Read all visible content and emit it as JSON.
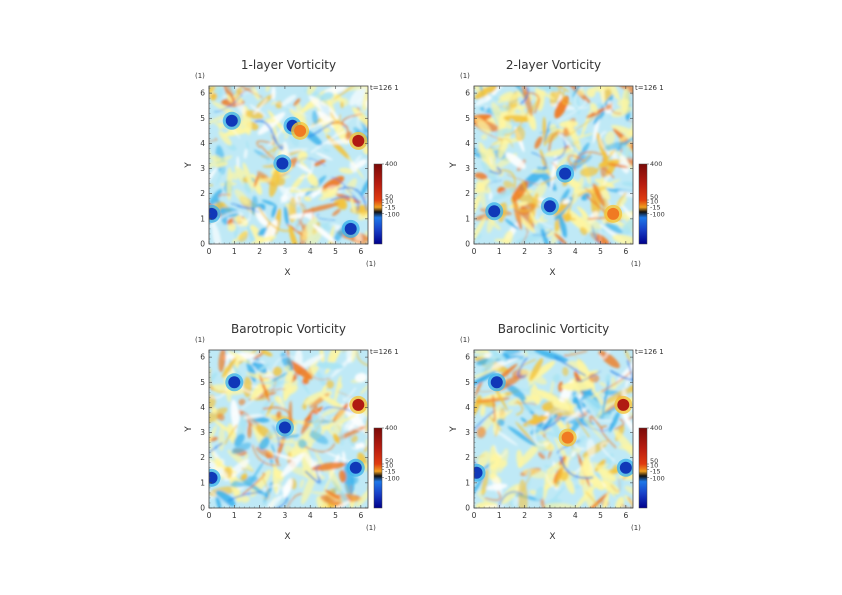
{
  "chart_data": [
    {
      "type": "heatmap",
      "title": "1-layer Vorticity",
      "xlabel": "X",
      "ylabel": "Y",
      "x_unit": "(1)",
      "y_unit": "(1)",
      "time_label": "t=126 1",
      "xlim": [
        0,
        6.2832
      ],
      "ylim": [
        0,
        6.2832
      ],
      "x_ticks": [
        "0",
        "1",
        "2",
        "3",
        "4",
        "5",
        "6"
      ],
      "y_ticks": [
        "0",
        "1",
        "2",
        "3",
        "4",
        "5",
        "6"
      ],
      "colorbar": {
        "labels": [
          "400",
          "50",
          "10",
          "-15",
          "-100"
        ],
        "values": [
          400,
          50,
          10,
          -15,
          -100
        ]
      },
      "features": [
        {
          "kind": "vortex",
          "x": 5.9,
          "y": 4.1,
          "value": 400
        },
        {
          "kind": "vortex",
          "x": 0.1,
          "y": 1.2,
          "value": -100
        },
        {
          "kind": "vortex",
          "x": 0.9,
          "y": 4.9,
          "value": -100
        },
        {
          "kind": "vortex",
          "x": 2.9,
          "y": 3.2,
          "value": -100
        },
        {
          "kind": "vortex",
          "x": 3.3,
          "y": 4.7,
          "value": -100
        },
        {
          "kind": "vortex",
          "x": 5.6,
          "y": 0.6,
          "value": -100
        },
        {
          "kind": "vortex",
          "x": 3.6,
          "y": 4.5,
          "value": 50
        }
      ]
    },
    {
      "type": "heatmap",
      "title": "2-layer Vorticity",
      "xlabel": "X",
      "ylabel": "Y",
      "x_unit": "(1)",
      "y_unit": "(1)",
      "time_label": "t=126 1",
      "xlim": [
        0,
        6.2832
      ],
      "ylim": [
        0,
        6.2832
      ],
      "x_ticks": [
        "0",
        "1",
        "2",
        "3",
        "4",
        "5",
        "6"
      ],
      "y_ticks": [
        "0",
        "1",
        "2",
        "3",
        "4",
        "5",
        "6"
      ],
      "colorbar": {
        "labels": [
          "400",
          "50",
          "10",
          "-15",
          "-100"
        ],
        "values": [
          400,
          50,
          10,
          -15,
          -100
        ]
      },
      "features": [
        {
          "kind": "vortex",
          "x": 3.6,
          "y": 2.8,
          "value": -100
        },
        {
          "kind": "vortex",
          "x": 0.8,
          "y": 1.3,
          "value": -100
        },
        {
          "kind": "vortex",
          "x": 3.0,
          "y": 1.5,
          "value": -100
        },
        {
          "kind": "vortex",
          "x": 5.5,
          "y": 1.2,
          "value": 50
        }
      ]
    },
    {
      "type": "heatmap",
      "title": "Barotropic Vorticity",
      "xlabel": "X",
      "ylabel": "Y",
      "x_unit": "(1)",
      "y_unit": "(1)",
      "time_label": "t=126 1",
      "xlim": [
        0,
        6.2832
      ],
      "ylim": [
        0,
        6.2832
      ],
      "x_ticks": [
        "0",
        "1",
        "2",
        "3",
        "4",
        "5",
        "6"
      ],
      "y_ticks": [
        "0",
        "1",
        "2",
        "3",
        "4",
        "5",
        "6"
      ],
      "colorbar": {
        "labels": [
          "400",
          "50",
          "10",
          "-15",
          "-100"
        ],
        "values": [
          400,
          50,
          10,
          -15,
          -100
        ]
      },
      "features": [
        {
          "kind": "vortex",
          "x": 5.9,
          "y": 4.1,
          "value": 400
        },
        {
          "kind": "vortex",
          "x": 0.1,
          "y": 1.2,
          "value": -100
        },
        {
          "kind": "vortex",
          "x": 1.0,
          "y": 5.0,
          "value": -100
        },
        {
          "kind": "vortex",
          "x": 3.0,
          "y": 3.2,
          "value": -100
        },
        {
          "kind": "vortex",
          "x": 5.8,
          "y": 1.6,
          "value": -100
        }
      ]
    },
    {
      "type": "heatmap",
      "title": "Baroclinic Vorticity",
      "xlabel": "X",
      "ylabel": "Y",
      "x_unit": "(1)",
      "y_unit": "(1)",
      "time_label": "t=126 1",
      "xlim": [
        0,
        6.2832
      ],
      "ylim": [
        0,
        6.2832
      ],
      "x_ticks": [
        "0",
        "1",
        "2",
        "3",
        "4",
        "5",
        "6"
      ],
      "y_ticks": [
        "0",
        "1",
        "2",
        "3",
        "4",
        "5",
        "6"
      ],
      "colorbar": {
        "labels": [
          "400",
          "50",
          "10",
          "-15",
          "-100"
        ],
        "values": [
          400,
          50,
          10,
          -15,
          -100
        ]
      },
      "features": [
        {
          "kind": "vortex",
          "x": 5.9,
          "y": 4.1,
          "value": 400
        },
        {
          "kind": "vortex",
          "x": 0.1,
          "y": 1.4,
          "value": -100
        },
        {
          "kind": "vortex",
          "x": 0.9,
          "y": 5.0,
          "value": -100
        },
        {
          "kind": "vortex",
          "x": 3.7,
          "y": 2.8,
          "value": 50
        },
        {
          "kind": "vortex",
          "x": 6.0,
          "y": 1.6,
          "value": -100
        }
      ]
    }
  ]
}
